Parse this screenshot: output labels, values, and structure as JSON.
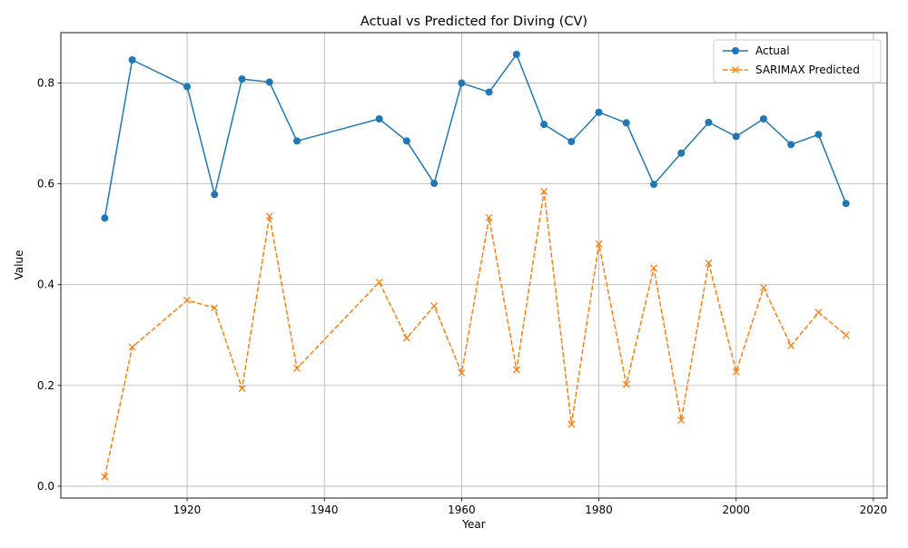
{
  "chart_data": {
    "type": "line",
    "title": "Actual vs Predicted for Diving (CV)",
    "xlabel": "Year",
    "ylabel": "Value",
    "xlim": [
      1901.6,
      2022
    ],
    "ylim": [
      -0.0235,
      0.9
    ],
    "xticks": [
      1920,
      1940,
      1960,
      1980,
      2000,
      2020
    ],
    "yticks": [
      0.0,
      0.2,
      0.4,
      0.6,
      0.8
    ],
    "ytick_labels": [
      "0.0",
      "0.2",
      "0.4",
      "0.6",
      "0.8"
    ],
    "grid": true,
    "legend_position": "top-right",
    "x": [
      1908,
      1912,
      1920,
      1924,
      1928,
      1932,
      1936,
      1948,
      1952,
      1956,
      1960,
      1964,
      1968,
      1972,
      1976,
      1980,
      1984,
      1988,
      1992,
      1996,
      2000,
      2004,
      2008,
      2012,
      2016
    ],
    "series": [
      {
        "name": "Actual",
        "color": "#1f77b4",
        "line_style": "solid",
        "marker": "circle",
        "values": [
          0.532,
          0.846,
          0.793,
          0.579,
          0.808,
          0.802,
          0.685,
          0.729,
          0.685,
          0.601,
          0.8,
          0.782,
          0.857,
          0.718,
          0.684,
          0.742,
          0.721,
          0.599,
          0.661,
          0.722,
          0.694,
          0.729,
          0.678,
          0.698,
          0.561
        ]
      },
      {
        "name": "SARIMAX Predicted",
        "color": "#ff7f0e",
        "line_style": "dashed",
        "marker": "x",
        "values": [
          0.019,
          0.276,
          0.369,
          0.354,
          0.194,
          0.536,
          0.234,
          0.405,
          0.294,
          0.358,
          0.225,
          0.533,
          0.231,
          0.585,
          0.123,
          0.481,
          0.202,
          0.433,
          0.131,
          0.443,
          0.227,
          0.394,
          0.279,
          0.345,
          0.3
        ]
      }
    ]
  }
}
